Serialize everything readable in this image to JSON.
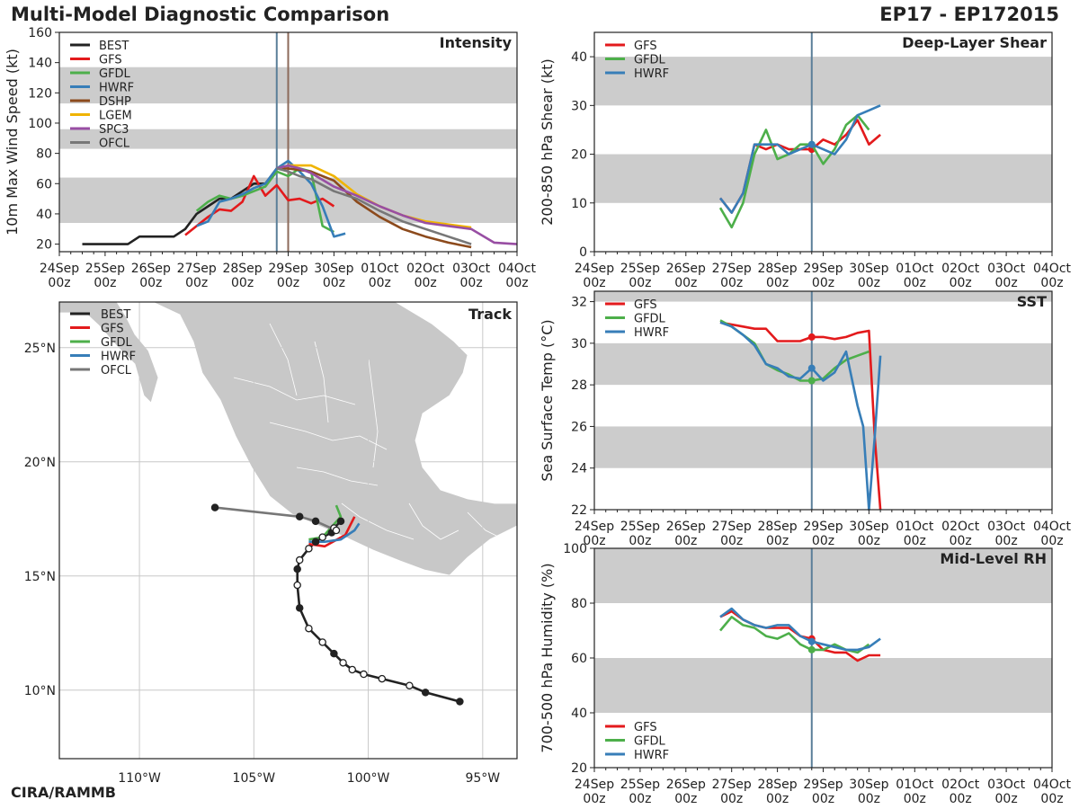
{
  "header": {
    "title": "Multi-Model Diagnostic Comparison",
    "storm": "EP17 - EP172015"
  },
  "footer": "CIRA/RAMMB",
  "colors": {
    "BEST": "#222222",
    "GFS": "#e31a1c",
    "GFDL": "#4daf4a",
    "HWRF": "#377eb8",
    "DSHP": "#8c4a1c",
    "LGEM": "#f0b400",
    "SPC3": "#984ea3",
    "OFCL": "#777777",
    "band": "#cccccc",
    "now_line": "#5b7f99"
  },
  "time_axis": {
    "range": [
      0,
      240
    ],
    "ticks": [
      {
        "v": 0,
        "day": "24Sep",
        "hr": "00z"
      },
      {
        "v": 24,
        "day": "25Sep",
        "hr": "00z"
      },
      {
        "v": 48,
        "day": "26Sep",
        "hr": "00z"
      },
      {
        "v": 72,
        "day": "27Sep",
        "hr": "00z"
      },
      {
        "v": 96,
        "day": "28Sep",
        "hr": "00z"
      },
      {
        "v": 120,
        "day": "29Sep",
        "hr": "00z"
      },
      {
        "v": 144,
        "day": "30Sep",
        "hr": "00z"
      },
      {
        "v": 168,
        "day": "01Oct",
        "hr": "00z"
      },
      {
        "v": 192,
        "day": "02Oct",
        "hr": "00z"
      },
      {
        "v": 216,
        "day": "03Oct",
        "hr": "00z"
      },
      {
        "v": 240,
        "day": "04Oct",
        "hr": "00z"
      }
    ],
    "now_hour": 114
  },
  "chart_data": [
    {
      "id": "intensity",
      "type": "line",
      "title": "Intensity",
      "ylabel": "10m Max Wind Speed (kt)",
      "ylim": [
        15,
        160
      ],
      "yticks": [
        20,
        40,
        60,
        80,
        100,
        120,
        140,
        160
      ],
      "bands": [
        [
          34,
          64
        ],
        [
          83,
          96
        ],
        [
          113,
          137
        ]
      ],
      "vlines": [
        {
          "x": 114,
          "color": "#5b7f99"
        },
        {
          "x": 120,
          "color": "#8c6a5a"
        }
      ],
      "legend": [
        "BEST",
        "GFS",
        "GFDL",
        "HWRF",
        "DSHP",
        "LGEM",
        "SPC3",
        "OFCL"
      ],
      "series": [
        {
          "name": "BEST",
          "x": [
            12,
            18,
            24,
            30,
            36,
            42,
            48,
            54,
            60,
            66,
            72,
            78,
            84,
            90,
            96,
            102,
            108,
            114
          ],
          "y": [
            20,
            20,
            20,
            20,
            20,
            25,
            25,
            25,
            25,
            30,
            40,
            45,
            50,
            50,
            55,
            60,
            60,
            70
          ]
        },
        {
          "name": "GFS",
          "x": [
            66,
            72,
            78,
            84,
            90,
            96,
            102,
            108,
            114,
            120,
            126,
            132,
            138,
            144
          ],
          "y": [
            26,
            32,
            38,
            43,
            42,
            48,
            65,
            52,
            59,
            49,
            50,
            47,
            50,
            45
          ]
        },
        {
          "name": "GFDL",
          "x": [
            72,
            78,
            84,
            90,
            96,
            102,
            108,
            114,
            120,
            126,
            132,
            138,
            144
          ],
          "y": [
            42,
            48,
            52,
            50,
            52,
            55,
            58,
            68,
            65,
            70,
            68,
            32,
            28
          ]
        },
        {
          "name": "HWRF",
          "x": [
            72,
            78,
            84,
            90,
            96,
            102,
            108,
            114,
            120,
            126,
            132,
            138,
            144,
            150
          ],
          "y": [
            32,
            35,
            48,
            50,
            53,
            57,
            60,
            70,
            75,
            68,
            60,
            45,
            25,
            27
          ]
        },
        {
          "name": "DSHP",
          "x": [
            114,
            120,
            132,
            144,
            156,
            168,
            180,
            192,
            204,
            216
          ],
          "y": [
            70,
            70,
            68,
            62,
            48,
            38,
            30,
            25,
            21,
            18
          ]
        },
        {
          "name": "LGEM",
          "x": [
            114,
            120,
            132,
            144,
            156,
            168,
            180,
            192,
            204,
            216
          ],
          "y": [
            70,
            72,
            72,
            65,
            53,
            45,
            39,
            35,
            33,
            31
          ]
        },
        {
          "name": "SPC3",
          "x": [
            114,
            120,
            126,
            132,
            144,
            156,
            168,
            180,
            192,
            204,
            216,
            228,
            240
          ],
          "y": [
            70,
            72,
            70,
            67,
            58,
            52,
            45,
            39,
            34,
            32,
            30,
            21,
            20
          ]
        },
        {
          "name": "OFCL",
          "x": [
            114,
            120,
            126,
            132,
            144,
            156,
            168,
            180,
            192,
            204,
            216
          ],
          "y": [
            70,
            68,
            65,
            63,
            55,
            50,
            42,
            35,
            30,
            25,
            20
          ]
        }
      ]
    },
    {
      "id": "shear",
      "type": "line",
      "title": "Deep-Layer Shear",
      "ylabel": "200-850 hPa Shear (kt)",
      "ylim": [
        0,
        45
      ],
      "yticks": [
        0,
        10,
        20,
        30,
        40
      ],
      "bands": [
        [
          10,
          20
        ],
        [
          30,
          40
        ]
      ],
      "vlines": [
        {
          "x": 114,
          "color": "#5b7f99"
        }
      ],
      "legend": [
        "GFS",
        "GFDL",
        "HWRF"
      ],
      "series": [
        {
          "name": "GFS",
          "x": [
            66,
            72,
            78,
            84,
            90,
            96,
            102,
            108,
            114,
            120,
            126,
            132,
            138,
            144,
            150
          ],
          "y": [
            11,
            8,
            12,
            22,
            21,
            22,
            21,
            21,
            21,
            23,
            22,
            24,
            27,
            22,
            24
          ]
        },
        {
          "name": "GFDL",
          "x": [
            66,
            72,
            78,
            84,
            90,
            96,
            102,
            108,
            114,
            120,
            126,
            132,
            138,
            144
          ],
          "y": [
            9,
            5,
            10,
            20,
            25,
            19,
            20,
            22,
            22,
            18,
            21,
            26,
            28,
            25
          ]
        },
        {
          "name": "HWRF",
          "x": [
            66,
            72,
            78,
            84,
            90,
            96,
            102,
            108,
            114,
            120,
            126,
            132,
            138,
            144,
            150
          ],
          "y": [
            11,
            8,
            12,
            22,
            22,
            22,
            20,
            21,
            22,
            21,
            20,
            23,
            28,
            29,
            30
          ]
        }
      ]
    },
    {
      "id": "sst",
      "type": "line",
      "title": "SST",
      "ylabel": "Sea Surface Temp (°C)",
      "ylim": [
        22,
        32.5
      ],
      "yticks": [
        22,
        24,
        26,
        28,
        30,
        32
      ],
      "bands": [
        [
          24,
          26
        ],
        [
          28,
          30
        ],
        [
          32,
          32.5
        ]
      ],
      "vlines": [
        {
          "x": 114,
          "color": "#5b7f99"
        }
      ],
      "legend": [
        "GFS",
        "GFDL",
        "HWRF"
      ],
      "series": [
        {
          "name": "GFS",
          "x": [
            66,
            72,
            78,
            84,
            90,
            96,
            102,
            108,
            114,
            120,
            126,
            132,
            138,
            144,
            147,
            150
          ],
          "y": [
            31.0,
            30.9,
            30.8,
            30.7,
            30.7,
            30.1,
            30.1,
            30.1,
            30.3,
            30.3,
            30.2,
            30.3,
            30.5,
            30.6,
            25.5,
            22.0
          ]
        },
        {
          "name": "GFDL",
          "x": [
            66,
            72,
            78,
            84,
            90,
            96,
            102,
            108,
            114,
            120,
            126,
            132,
            138,
            144
          ],
          "y": [
            31.1,
            30.8,
            30.4,
            30.0,
            29.0,
            28.7,
            28.5,
            28.2,
            28.2,
            28.3,
            28.8,
            29.2,
            29.4,
            29.6
          ]
        },
        {
          "name": "HWRF",
          "x": [
            66,
            72,
            78,
            84,
            90,
            96,
            102,
            108,
            114,
            120,
            126,
            132,
            138,
            141,
            144,
            147,
            150
          ],
          "y": [
            31.0,
            30.8,
            30.4,
            29.9,
            29.0,
            28.8,
            28.4,
            28.3,
            28.8,
            28.2,
            28.6,
            29.6,
            27.0,
            26.0,
            22.0,
            25.5,
            29.4
          ]
        }
      ]
    },
    {
      "id": "rh",
      "type": "line",
      "title": "Mid-Level RH",
      "ylabel": "700-500 hPa Humidity (%)",
      "ylim": [
        20,
        100
      ],
      "yticks": [
        20,
        40,
        60,
        80,
        100
      ],
      "bands": [
        [
          40,
          60
        ],
        [
          80,
          100
        ]
      ],
      "vlines": [
        {
          "x": 114,
          "color": "#5b7f99"
        }
      ],
      "legend": [
        "GFS",
        "GFDL",
        "HWRF"
      ],
      "series": [
        {
          "name": "GFS",
          "x": [
            66,
            72,
            78,
            84,
            90,
            96,
            102,
            108,
            114,
            120,
            126,
            132,
            138,
            144,
            150
          ],
          "y": [
            75,
            77,
            74,
            72,
            71,
            71,
            71,
            68,
            67,
            63,
            62,
            62,
            59,
            61,
            61
          ]
        },
        {
          "name": "GFDL",
          "x": [
            66,
            72,
            78,
            84,
            90,
            96,
            102,
            108,
            114,
            120,
            126,
            132,
            138,
            144
          ],
          "y": [
            70,
            75,
            72,
            71,
            68,
            67,
            69,
            65,
            63,
            63,
            65,
            63,
            62,
            65
          ]
        },
        {
          "name": "HWRF",
          "x": [
            66,
            72,
            78,
            84,
            90,
            96,
            102,
            108,
            114,
            120,
            126,
            132,
            138,
            144,
            150
          ],
          "y": [
            75,
            78,
            74,
            72,
            71,
            72,
            72,
            68,
            66,
            65,
            64,
            63,
            63,
            64,
            67
          ]
        }
      ]
    },
    {
      "id": "track",
      "type": "line",
      "title": "Track",
      "xlabel": "",
      "ylabel": "",
      "xlim": [
        -113.5,
        -93.5
      ],
      "ylim": [
        7,
        27
      ],
      "xticks": [
        {
          "v": -110,
          "label": "110°W"
        },
        {
          "v": -105,
          "label": "105°W"
        },
        {
          "v": -100,
          "label": "100°W"
        },
        {
          "v": -95,
          "label": "95°W"
        }
      ],
      "yticks": [
        {
          "v": 10,
          "label": "10°N"
        },
        {
          "v": 15,
          "label": "15°N"
        },
        {
          "v": 20,
          "label": "20°N"
        },
        {
          "v": 25,
          "label": "25°N"
        }
      ],
      "legend": [
        "BEST",
        "GFS",
        "GFDL",
        "HWRF",
        "OFCL"
      ],
      "series": [
        {
          "name": "BEST",
          "lon": [
            -96.0,
            -97.5,
            -98.2,
            -99.4,
            -100.2,
            -100.7,
            -101.1,
            -101.5,
            -102.0,
            -102.6,
            -103.0,
            -103.1,
            -103.1,
            -103.0,
            -102.6,
            -102.3,
            -102.0,
            -101.6,
            -101.5,
            -101.2
          ],
          "lat": [
            9.5,
            9.9,
            10.2,
            10.5,
            10.7,
            10.9,
            11.2,
            11.6,
            12.1,
            12.7,
            13.6,
            14.6,
            15.3,
            15.7,
            16.2,
            16.5,
            16.7,
            16.9,
            17.1,
            17.4
          ],
          "filled": [
            1,
            1,
            0,
            0,
            0,
            0,
            0,
            1,
            0,
            0,
            1,
            0,
            1,
            0,
            0,
            1,
            0,
            1,
            0,
            1
          ]
        },
        {
          "name": "GFS",
          "lon": [
            -102.6,
            -101.9,
            -101.0,
            -100.6
          ],
          "lat": [
            16.4,
            16.3,
            16.8,
            17.6
          ]
        },
        {
          "name": "GFDL",
          "lon": [
            -102.6,
            -102.0,
            -101.2,
            -101.4
          ],
          "lat": [
            16.6,
            16.7,
            17.6,
            18.1
          ]
        },
        {
          "name": "HWRF",
          "lon": [
            -102.6,
            -101.9,
            -101.2,
            -100.6,
            -100.4
          ],
          "lat": [
            16.5,
            16.5,
            16.6,
            17.0,
            17.3
          ]
        },
        {
          "name": "OFCL",
          "lon": [
            -101.4,
            -102.3,
            -103.0,
            -106.7
          ],
          "lat": [
            17.0,
            17.4,
            17.6,
            18.0
          ],
          "filled": [
            0,
            1,
            1,
            1
          ]
        }
      ]
    }
  ]
}
